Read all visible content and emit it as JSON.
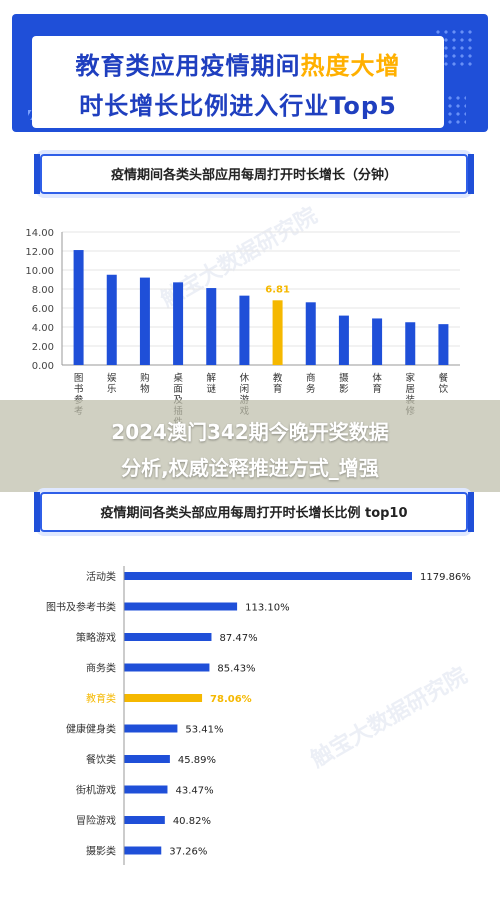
{
  "header": {
    "title_line1_main": "教育类应用疫情期间",
    "title_line1_highlight": "热度大增",
    "title_line2": "时长增长比例进入行业Top5"
  },
  "banner": {
    "line1": "2024澳门342期今晚开奖数据",
    "line2": "分析,权威诠释推进方式_增强"
  },
  "watermark": "触宝大数据研究院",
  "colors": {
    "bar": "#1f4fd8",
    "highlight": "#f5b800",
    "header_bg": "#1f4fd8"
  },
  "chart_data": [
    {
      "type": "bar",
      "title": "疫情期间各类头部应用每周打开时长增长（分钟）",
      "categories": [
        "图书参考",
        "娱乐",
        "购物",
        "桌面及插件",
        "解谜",
        "休闲游戏",
        "教育",
        "商务",
        "摄影",
        "体育",
        "家居装修",
        "餐饮"
      ],
      "category_lines": [
        [
          "图",
          "书",
          "参",
          "考"
        ],
        [
          "娱",
          "乐"
        ],
        [
          "购",
          "物"
        ],
        [
          "桌",
          "面",
          "及",
          "插",
          "件"
        ],
        [
          "解",
          "谜"
        ],
        [
          "休",
          "闲",
          "游",
          "戏"
        ],
        [
          "教",
          "育"
        ],
        [
          "商",
          "务"
        ],
        [
          "摄",
          "影"
        ],
        [
          "体",
          "育"
        ],
        [
          "家",
          "居",
          "装",
          "修"
        ],
        [
          "餐",
          "饮"
        ]
      ],
      "values": [
        12.1,
        9.5,
        9.2,
        8.7,
        8.1,
        7.3,
        6.81,
        6.6,
        5.2,
        4.9,
        4.5,
        4.3
      ],
      "highlight_index": 6,
      "highlight_label": "6.81",
      "yticks": [
        "0.00",
        "2.00",
        "4.00",
        "6.00",
        "8.00",
        "10.00",
        "12.00",
        "14.00"
      ],
      "ylim": [
        0,
        14
      ]
    },
    {
      "type": "bar",
      "orientation": "horizontal",
      "title": "疫情期间各类头部应用每周打开时长增长比例 top10",
      "categories": [
        "活动类",
        "图书及参考书类",
        "策略游戏",
        "商务类",
        "教育类",
        "健康健身类",
        "餐饮类",
        "街机游戏",
        "冒险游戏",
        "摄影类"
      ],
      "values": [
        1179.86,
        113.1,
        87.47,
        85.43,
        78.06,
        53.41,
        45.89,
        43.47,
        40.82,
        37.26
      ],
      "value_labels": [
        "1179.86%",
        "113.10%",
        "87.47%",
        "85.43%",
        "78.06%",
        "53.41%",
        "45.89%",
        "43.47%",
        "40.82%",
        "37.26%"
      ],
      "highlight_index": 4
    }
  ]
}
